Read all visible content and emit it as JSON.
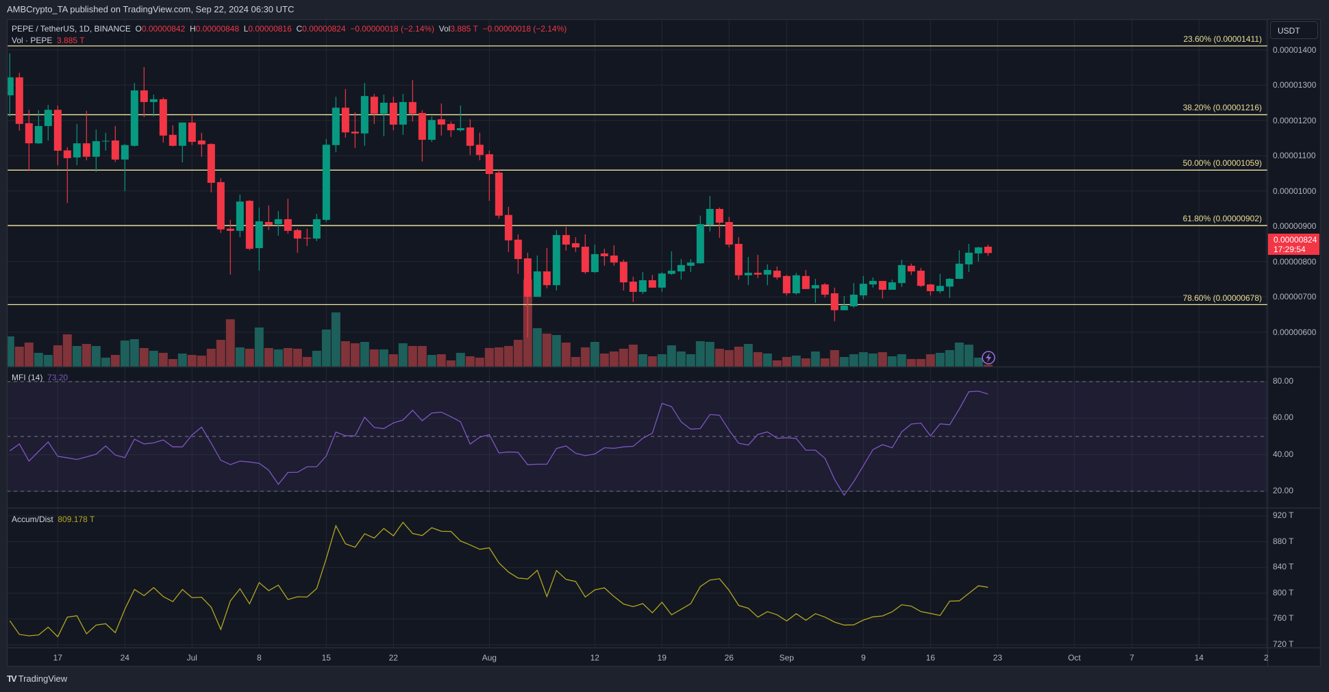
{
  "header": {
    "publisher_line": "AMBCrypto_TA published on TradingView.com, Sep 22, 2024 06:30 UTC"
  },
  "legend": {
    "symbol": "PEPE / TetherUS, 1D, BINANCE",
    "o_label": "O",
    "o": "0.00000842",
    "h_label": "H",
    "h": "0.00000848",
    "l_label": "L",
    "l": "0.00000816",
    "c_label": "C",
    "c": "0.00000824",
    "change": "−0.00000018 (−2.14%)",
    "vol_label": "Vol",
    "vol": "3.885 T",
    "vol_change": "−0.00000018 (−2.14%)",
    "vol_study": "Vol · PEPE",
    "vol_study_value": "3.885 T"
  },
  "price_axis": {
    "currency_button": "USDT",
    "ticks": [
      "0.00001400",
      "0.00001300",
      "0.00001200",
      "0.00001100",
      "0.00001000",
      "0.00000900",
      "0.00000800",
      "0.00000700",
      "0.00000600"
    ],
    "last_price": "0.00000824",
    "countdown": "17:29:54"
  },
  "fib_levels": [
    {
      "label": "23.60% (0.00001411)",
      "price": 1.411e-05
    },
    {
      "label": "38.20% (0.00001216)",
      "price": 1.216e-05
    },
    {
      "label": "50.00% (0.00001059)",
      "price": 1.059e-05
    },
    {
      "label": "61.80% (0.00000902)",
      "price": 9.02e-06
    },
    {
      "label": "78.60% (0.00000678)",
      "price": 6.78e-06
    }
  ],
  "mfi": {
    "title": "MFI (14)",
    "value": "73.20",
    "ticks": [
      "80.00",
      "60.00",
      "40.00",
      "20.00"
    ],
    "band_levels": [
      80,
      50,
      20
    ]
  },
  "accum_dist": {
    "title": "Accum/Dist",
    "value": "809.178 T",
    "ticks": [
      "920 T",
      "880 T",
      "840 T",
      "800 T",
      "760 T",
      "720 T"
    ]
  },
  "time_axis": {
    "ticks": [
      {
        "label": "17",
        "date": "2024-06-17"
      },
      {
        "label": "24",
        "date": "2024-06-24"
      },
      {
        "label": "Jul",
        "date": "2024-07-01"
      },
      {
        "label": "8",
        "date": "2024-07-08"
      },
      {
        "label": "15",
        "date": "2024-07-15"
      },
      {
        "label": "22",
        "date": "2024-07-22"
      },
      {
        "label": "Aug",
        "date": "2024-08-01"
      },
      {
        "label": "12",
        "date": "2024-08-12"
      },
      {
        "label": "19",
        "date": "2024-08-19"
      },
      {
        "label": "26",
        "date": "2024-08-26"
      },
      {
        "label": "Sep",
        "date": "2024-09-01"
      },
      {
        "label": "9",
        "date": "2024-09-09"
      },
      {
        "label": "16",
        "date": "2024-09-16"
      },
      {
        "label": "23",
        "date": "2024-09-23"
      },
      {
        "label": "Oct",
        "date": "2024-10-01"
      },
      {
        "label": "7",
        "date": "2024-10-07"
      },
      {
        "label": "14",
        "date": "2024-10-14"
      },
      {
        "label": "2",
        "date": "2024-10-21"
      }
    ]
  },
  "footer": {
    "brand": "TradingView"
  },
  "icons": {
    "alert": "lightning-icon",
    "logo": "tradingview-logo-icon"
  },
  "colors": {
    "up": "#089981",
    "down": "#f23645",
    "vol_up": "#1d5f5b",
    "vol_down": "#803339",
    "fib": "#f3e9a0",
    "mfi_line": "#7e57c2",
    "mfi_band": "#7e57c2",
    "accum_dist_line": "#b3a81f",
    "background": "#131722",
    "grid": "#242833"
  },
  "chart_data": {
    "type": "candlestick",
    "columns": [
      "date",
      "open",
      "high",
      "low",
      "close",
      "volume_T"
    ],
    "candles": [
      [
        "2024-06-12",
        1.271e-05,
        1.39e-05,
        1.211e-05,
        1.322e-05,
        66
      ],
      [
        "2024-06-13",
        1.322e-05,
        1.335e-05,
        1.171e-05,
        1.19e-05,
        43.5
      ],
      [
        "2024-06-14",
        1.192e-05,
        1.23e-05,
        1.056e-05,
        1.135e-05,
        52.5
      ],
      [
        "2024-06-15",
        1.135e-05,
        1.229e-05,
        1.133e-05,
        1.184e-05,
        30
      ],
      [
        "2024-06-16",
        1.184e-05,
        1.244e-05,
        1.143e-05,
        1.23e-05,
        25.5
      ],
      [
        "2024-06-17",
        1.23e-05,
        1.242e-05,
        1.073e-05,
        1.114e-05,
        46.5
      ],
      [
        "2024-06-18",
        1.115e-05,
        1.124e-05,
        9.66e-06,
        1.093e-05,
        70.5
      ],
      [
        "2024-06-19",
        1.095e-05,
        1.19e-05,
        1.073e-05,
        1.135e-05,
        45
      ],
      [
        "2024-06-20",
        1.135e-05,
        1.227e-05,
        1.087e-05,
        1.097e-05,
        49.5
      ],
      [
        "2024-06-21",
        1.097e-05,
        1.174e-05,
        1.054e-05,
        1.141e-05,
        45
      ],
      [
        "2024-06-22",
        1.141e-05,
        1.165e-05,
        1.114e-05,
        1.142e-05,
        19.5
      ],
      [
        "2024-06-23",
        1.143e-05,
        1.184e-05,
        1.082e-05,
        1.089e-05,
        25.5
      ],
      [
        "2024-06-24",
        1.089e-05,
        1.133e-05,
        1e-05,
        1.13e-05,
        57
      ],
      [
        "2024-06-25",
        1.128e-05,
        1.306e-05,
        1.126e-05,
        1.285e-05,
        60
      ],
      [
        "2024-06-26",
        1.285e-05,
        1.351e-05,
        1.209e-05,
        1.252e-05,
        40.5
      ],
      [
        "2024-06-27",
        1.252e-05,
        1.273e-05,
        1.211e-05,
        1.26e-05,
        34.5
      ],
      [
        "2024-06-28",
        1.26e-05,
        1.265e-05,
        1.137e-05,
        1.157e-05,
        30
      ],
      [
        "2024-06-29",
        1.159e-05,
        1.186e-05,
        1.126e-05,
        1.128e-05,
        16.5
      ],
      [
        "2024-06-30",
        1.128e-05,
        1.194e-05,
        1.081e-05,
        1.194e-05,
        28.5
      ],
      [
        "2024-07-01",
        1.194e-05,
        1.219e-05,
        1.13e-05,
        1.139e-05,
        25.5
      ],
      [
        "2024-07-02",
        1.143e-05,
        1.165e-05,
        1.097e-05,
        1.132e-05,
        24
      ],
      [
        "2024-07-03",
        1.133e-05,
        1.135e-05,
        9.96e-06,
        1.023e-05,
        39
      ],
      [
        "2024-07-04",
        1.025e-05,
        1.036e-05,
        8.81e-06,
        8.91e-06,
        58.5
      ],
      [
        "2024-07-05",
        8.93e-06,
        9.18e-06,
        7.63e-06,
        8.87e-06,
        103.5
      ],
      [
        "2024-07-06",
        8.87e-06,
        9.9e-06,
        8.69e-06,
        9.7e-06,
        42
      ],
      [
        "2024-07-07",
        9.72e-06,
        9.74e-06,
        8.32e-06,
        8.36e-06,
        39
      ],
      [
        "2024-07-08",
        8.38e-06,
        9.53e-06,
        7.74e-06,
        9.14e-06,
        85.5
      ],
      [
        "2024-07-09",
        9.12e-06,
        9.59e-06,
        8.89e-06,
        9.04e-06,
        40.5
      ],
      [
        "2024-07-10",
        9.06e-06,
        9.43e-06,
        8.73e-06,
        9.2e-06,
        37.5
      ],
      [
        "2024-07-11",
        9.2e-06,
        9.78e-06,
        8.79e-06,
        8.87e-06,
        40.5
      ],
      [
        "2024-07-12",
        8.89e-06,
        8.93e-06,
        8.25e-06,
        8.65e-06,
        39
      ],
      [
        "2024-07-13",
        8.67e-06,
        8.93e-06,
        8.44e-06,
        8.66e-06,
        21
      ],
      [
        "2024-07-14",
        8.65e-06,
        9.35e-06,
        8.58e-06,
        9.2e-06,
        34.5
      ],
      [
        "2024-07-15",
        9.18e-06,
        1.147e-05,
        9.12e-06,
        1.131e-05,
        81
      ],
      [
        "2024-07-16",
        1.13e-05,
        1.267e-05,
        1.11e-05,
        1.236e-05,
        118.5
      ],
      [
        "2024-07-17",
        1.236e-05,
        1.289e-05,
        1.151e-05,
        1.166e-05,
        55.5
      ],
      [
        "2024-07-18",
        1.168e-05,
        1.223e-05,
        1.122e-05,
        1.163e-05,
        51
      ],
      [
        "2024-07-19",
        1.163e-05,
        1.306e-05,
        1.128e-05,
        1.269e-05,
        54
      ],
      [
        "2024-07-20",
        1.267e-05,
        1.275e-05,
        1.19e-05,
        1.219e-05,
        37.5
      ],
      [
        "2024-07-21",
        1.219e-05,
        1.273e-05,
        1.155e-05,
        1.25e-05,
        37.5
      ],
      [
        "2024-07-22",
        1.25e-05,
        1.267e-05,
        1.172e-05,
        1.188e-05,
        27
      ],
      [
        "2024-07-23",
        1.188e-05,
        1.275e-05,
        1.159e-05,
        1.252e-05,
        51
      ],
      [
        "2024-07-24",
        1.252e-05,
        1.314e-05,
        1.197e-05,
        1.219e-05,
        45
      ],
      [
        "2024-07-25",
        1.221e-05,
        1.229e-05,
        1.083e-05,
        1.145e-05,
        45
      ],
      [
        "2024-07-26",
        1.145e-05,
        1.211e-05,
        1.139e-05,
        1.201e-05,
        25.5
      ],
      [
        "2024-07-27",
        1.203e-05,
        1.248e-05,
        1.157e-05,
        1.188e-05,
        27
      ],
      [
        "2024-07-28",
        1.19e-05,
        1.197e-05,
        1.153e-05,
        1.172e-05,
        13.5
      ],
      [
        "2024-07-29",
        1.172e-05,
        1.242e-05,
        1.168e-05,
        1.178e-05,
        30
      ],
      [
        "2024-07-30",
        1.18e-05,
        1.203e-05,
        1.102e-05,
        1.128e-05,
        22.5
      ],
      [
        "2024-07-31",
        1.131e-05,
        1.165e-05,
        1.087e-05,
        1.102e-05,
        19.5
      ],
      [
        "2024-08-01",
        1.104e-05,
        1.114e-05,
        9.72e-06,
        1.048e-05,
        40.5
      ],
      [
        "2024-08-02",
        1.052e-05,
        1.06e-05,
        9.22e-06,
        9.3e-06,
        42
      ],
      [
        "2024-08-03",
        9.32e-06,
        9.55e-06,
        8.27e-06,
        8.6e-06,
        45
      ],
      [
        "2024-08-04",
        8.62e-06,
        8.77e-06,
        7.65e-06,
        8.07e-06,
        58.5
      ],
      [
        "2024-08-05",
        8.09e-06,
        8.25e-06,
        5.84e-06,
        7e-06,
        190.5
      ],
      [
        "2024-08-06",
        7e-06,
        8.17e-06,
        7e-06,
        7.72e-06,
        84
      ],
      [
        "2024-08-07",
        7.72e-06,
        8.38e-06,
        7.24e-06,
        7.33e-06,
        72
      ],
      [
        "2024-08-08",
        7.33e-06,
        8.89e-06,
        7.18e-06,
        8.75e-06,
        69
      ],
      [
        "2024-08-09",
        8.75e-06,
        8.98e-06,
        8.31e-06,
        8.48e-06,
        52.5
      ],
      [
        "2024-08-10",
        8.52e-06,
        8.69e-06,
        8.27e-06,
        8.4e-06,
        21
      ],
      [
        "2024-08-11",
        8.42e-06,
        8.77e-06,
        7.65e-06,
        7.7e-06,
        42
      ],
      [
        "2024-08-12",
        7.7e-06,
        8.48e-06,
        7.68e-06,
        8.21e-06,
        54
      ],
      [
        "2024-08-13",
        8.23e-06,
        8.36e-06,
        7.88e-06,
        8.15e-06,
        28.5
      ],
      [
        "2024-08-14",
        8.17e-06,
        8.46e-06,
        7.88e-06,
        7.97e-06,
        33
      ],
      [
        "2024-08-15",
        7.99e-06,
        8.05e-06,
        7.18e-06,
        7.41e-06,
        39
      ],
      [
        "2024-08-16",
        7.43e-06,
        7.57e-06,
        6.85e-06,
        7.14e-06,
        48
      ],
      [
        "2024-08-17",
        7.14e-06,
        7.7e-06,
        7.08e-06,
        7.47e-06,
        27
      ],
      [
        "2024-08-18",
        7.47e-06,
        7.62e-06,
        7.26e-06,
        7.26e-06,
        22.5
      ],
      [
        "2024-08-19",
        7.26e-06,
        7.7e-06,
        7.14e-06,
        7.66e-06,
        27
      ],
      [
        "2024-08-20",
        7.65e-06,
        8.29e-06,
        7.62e-06,
        7.74e-06,
        46.5
      ],
      [
        "2024-08-21",
        7.72e-06,
        8.07e-06,
        7.49e-06,
        7.9e-06,
        33
      ],
      [
        "2024-08-22",
        7.88e-06,
        8.07e-06,
        7.7e-06,
        7.97e-06,
        27
      ],
      [
        "2024-08-23",
        7.95e-06,
        9.3e-06,
        7.94e-06,
        9.06e-06,
        55.5
      ],
      [
        "2024-08-24",
        9.04e-06,
        9.86e-06,
        8.85e-06,
        9.49e-06,
        54
      ],
      [
        "2024-08-25",
        9.49e-06,
        9.53e-06,
        8.67e-06,
        9.1e-06,
        39
      ],
      [
        "2024-08-26",
        9.12e-06,
        9.26e-06,
        8.4e-06,
        8.48e-06,
        36
      ],
      [
        "2024-08-27",
        8.5e-06,
        8.69e-06,
        7.49e-06,
        7.61e-06,
        43.5
      ],
      [
        "2024-08-28",
        7.61e-06,
        8.13e-06,
        7.33e-06,
        7.68e-06,
        49.5
      ],
      [
        "2024-08-29",
        7.68e-06,
        8.19e-06,
        7.53e-06,
        7.63e-06,
        31.5
      ],
      [
        "2024-08-30",
        7.63e-06,
        7.92e-06,
        7.33e-06,
        7.76e-06,
        28.5
      ],
      [
        "2024-08-31",
        7.74e-06,
        7.86e-06,
        7.49e-06,
        7.55e-06,
        13.5
      ],
      [
        "2024-09-01",
        7.59e-06,
        7.62e-06,
        7.04e-06,
        7.1e-06,
        21
      ],
      [
        "2024-09-02",
        7.1e-06,
        7.68e-06,
        7.06e-06,
        7.61e-06,
        24
      ],
      [
        "2024-09-03",
        7.59e-06,
        7.76e-06,
        7.22e-06,
        7.22e-06,
        18
      ],
      [
        "2024-09-04",
        7.24e-06,
        7.51e-06,
        6.83e-06,
        7.33e-06,
        33
      ],
      [
        "2024-09-05",
        7.35e-06,
        7.39e-06,
        6.98e-06,
        7.06e-06,
        18
      ],
      [
        "2024-09-06",
        7.1e-06,
        7.26e-06,
        6.31e-06,
        6.62e-06,
        36
      ],
      [
        "2024-09-07",
        6.62e-06,
        7.02e-06,
        6.62e-06,
        6.75e-06,
        21
      ],
      [
        "2024-09-08",
        6.73e-06,
        7.39e-06,
        6.69e-06,
        7.06e-06,
        27
      ],
      [
        "2024-09-09",
        7.04e-06,
        7.59e-06,
        6.93e-06,
        7.37e-06,
        31.5
      ],
      [
        "2024-09-10",
        7.35e-06,
        7.55e-06,
        7.26e-06,
        7.45e-06,
        28.5
      ],
      [
        "2024-09-11",
        7.45e-06,
        7.45e-06,
        6.95e-06,
        7.2e-06,
        31.5
      ],
      [
        "2024-09-12",
        7.2e-06,
        7.49e-06,
        7.2e-06,
        7.41e-06,
        22.5
      ],
      [
        "2024-09-13",
        7.39e-06,
        8.05e-06,
        7.28e-06,
        7.9e-06,
        27
      ],
      [
        "2024-09-14",
        7.88e-06,
        7.94e-06,
        7.62e-06,
        7.72e-06,
        16.5
      ],
      [
        "2024-09-15",
        7.74e-06,
        7.82e-06,
        7.28e-06,
        7.31e-06,
        16.5
      ],
      [
        "2024-09-16",
        7.35e-06,
        7.37e-06,
        7.04e-06,
        7.16e-06,
        27
      ],
      [
        "2024-09-17",
        7.16e-06,
        7.65e-06,
        7.1e-06,
        7.31e-06,
        30
      ],
      [
        "2024-09-18",
        7.29e-06,
        7.53e-06,
        6.97e-06,
        7.51e-06,
        36
      ],
      [
        "2024-09-19",
        7.51e-06,
        8.32e-06,
        7.51e-06,
        7.94e-06,
        52.5
      ],
      [
        "2024-09-20",
        7.92e-06,
        8.5e-06,
        7.7e-06,
        8.25e-06,
        48
      ],
      [
        "2024-09-21",
        8.23e-06,
        8.42e-06,
        8e-06,
        8.4e-06,
        19.5
      ],
      [
        "2024-09-22",
        8.42e-06,
        8.48e-06,
        8.16e-06,
        8.24e-06,
        3.885
      ]
    ],
    "mfi": [
      42.1,
      45.9,
      36.5,
      41.8,
      47.0,
      39.1,
      38.3,
      37.4,
      38.8,
      40.3,
      44.8,
      39.8,
      38.4,
      48.5,
      45.9,
      46.5,
      48.1,
      44.3,
      44.3,
      50.8,
      55.1,
      46.3,
      37.0,
      34.6,
      36.5,
      36.0,
      35.3,
      31.5,
      23.8,
      30.3,
      30.4,
      33.4,
      33.4,
      39.4,
      52.4,
      50.4,
      50.3,
      60.5,
      54.9,
      54.3,
      57.4,
      59.0,
      64.3,
      58.6,
      62.8,
      63.3,
      60.8,
      58.0,
      45.8,
      49.6,
      51.0,
      41.0,
      41.5,
      41.3,
      34.5,
      34.8,
      34.8,
      43.4,
      44.8,
      40.8,
      39.5,
      40.4,
      43.8,
      43.5,
      44.3,
      44.6,
      49.0,
      51.8,
      68.1,
      66.3,
      58.0,
      54.0,
      54.3,
      62.0,
      61.6,
      53.4,
      46.3,
      45.3,
      51.1,
      52.5,
      49.0,
      49.3,
      48.9,
      42.5,
      42.5,
      38.0,
      26.5,
      17.8,
      25.3,
      34.0,
      42.8,
      45.5,
      43.8,
      52.5,
      56.8,
      57.3,
      50.3,
      56.9,
      56.4,
      65.0,
      74.5,
      74.8,
      73.2
    ],
    "accum_dist_T": [
      757.2,
      736.0,
      733.8,
      735.2,
      747.3,
      732.4,
      762.9,
      765.0,
      737.0,
      750.5,
      752.6,
      738.8,
      775.3,
      805.8,
      796.2,
      808.7,
      794.8,
      787.0,
      805.8,
      793.0,
      793.8,
      778.2,
      743.8,
      788.1,
      806.9,
      783.5,
      816.5,
      804.0,
      812.6,
      790.2,
      794.5,
      794.1,
      807.2,
      854.0,
      904.8,
      876.7,
      871.4,
      892.3,
      885.6,
      900.5,
      889.1,
      910.1,
      892.7,
      889.5,
      901.6,
      896.2,
      895.9,
      881.0,
      875.0,
      868.2,
      870.4,
      847.0,
      832.8,
      823.5,
      822.1,
      835.6,
      794.8,
      835.2,
      821.4,
      818.2,
      794.1,
      805.1,
      808.3,
      794.8,
      783.1,
      779.2,
      783.8,
      769.6,
      786.0,
      766.5,
      775.0,
      783.8,
      810.4,
      820.4,
      822.5,
      804.4,
      781.0,
      776.7,
      762.9,
      771.4,
      766.5,
      756.9,
      768.2,
      758.0,
      768.2,
      762.9,
      755.1,
      750.5,
      750.9,
      758.3,
      763.3,
      764.7,
      771.1,
      782.1,
      779.9,
      771.4,
      768.6,
      765.4,
      787.7,
      788.1,
      799.8,
      811.5,
      809.178
    ],
    "price_ylim": [
      5.8e-06,
      1.43e-05
    ],
    "mfi_ylim": [
      20,
      80
    ],
    "accum_dist_ylim_T": [
      720,
      920
    ],
    "grid": true
  }
}
